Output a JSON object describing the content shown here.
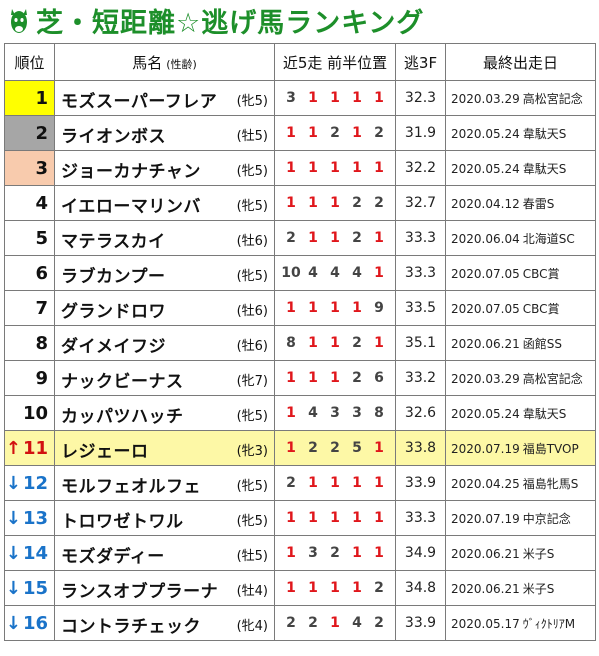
{
  "title": "芝・短距離☆逃げ馬ランキング",
  "colors": {
    "title": "#1d8f2a",
    "first_place": "#ffff00",
    "second_place": "#a6a6a6",
    "third_place": "#f8cbad",
    "highlight_row": "#fdf8a6",
    "leader_position": "#e0161b",
    "rank_up": "#d21010",
    "rank_down": "#1a73c9"
  },
  "headers": {
    "rank": "順位",
    "name": "馬名",
    "name_sub": "(性齢)",
    "recent": "近5走 前半位置",
    "last3f": "逃3F",
    "last_run": "最終出走日"
  },
  "rows": [
    {
      "rank": "1",
      "arrow": "",
      "name": "モズスーパーフレア",
      "age": "(牝5)",
      "positions": [
        "3",
        "1",
        "1",
        "1",
        "1"
      ],
      "last3f": "32.3",
      "date": "2020.03.29",
      "race": "高松宮記念",
      "rank_bg": "#ffff00"
    },
    {
      "rank": "2",
      "arrow": "",
      "name": "ライオンボス",
      "age": "(牡5)",
      "positions": [
        "1",
        "1",
        "2",
        "1",
        "2"
      ],
      "last3f": "31.9",
      "date": "2020.05.24",
      "race": "韋駄天S",
      "rank_bg": "#a6a6a6"
    },
    {
      "rank": "3",
      "arrow": "",
      "name": "ジョーカナチャン",
      "age": "(牝5)",
      "positions": [
        "1",
        "1",
        "1",
        "1",
        "1"
      ],
      "last3f": "32.2",
      "date": "2020.05.24",
      "race": "韋駄天S",
      "rank_bg": "#f8cbad"
    },
    {
      "rank": "4",
      "arrow": "",
      "name": "イエローマリンバ",
      "age": "(牝5)",
      "positions": [
        "1",
        "1",
        "1",
        "2",
        "2"
      ],
      "last3f": "32.7",
      "date": "2020.04.12",
      "race": "春雷S",
      "rank_bg": ""
    },
    {
      "rank": "5",
      "arrow": "",
      "name": "マテラスカイ",
      "age": "(牡6)",
      "positions": [
        "2",
        "1",
        "1",
        "2",
        "1"
      ],
      "last3f": "33.3",
      "date": "2020.06.04",
      "race": "北海道SC",
      "rank_bg": ""
    },
    {
      "rank": "6",
      "arrow": "",
      "name": "ラブカンプー",
      "age": "(牝5)",
      "positions": [
        "10",
        "4",
        "4",
        "4",
        "1"
      ],
      "last3f": "33.3",
      "date": "2020.07.05",
      "race": "CBC賞",
      "rank_bg": ""
    },
    {
      "rank": "7",
      "arrow": "",
      "name": "グランドロワ",
      "age": "(牡6)",
      "positions": [
        "1",
        "1",
        "1",
        "1",
        "9"
      ],
      "last3f": "33.5",
      "date": "2020.07.05",
      "race": "CBC賞",
      "rank_bg": ""
    },
    {
      "rank": "8",
      "arrow": "",
      "name": "ダイメイフジ",
      "age": "(牡6)",
      "positions": [
        "8",
        "1",
        "1",
        "2",
        "1"
      ],
      "last3f": "35.1",
      "date": "2020.06.21",
      "race": "函館SS",
      "rank_bg": ""
    },
    {
      "rank": "9",
      "arrow": "",
      "name": "ナックビーナス",
      "age": "(牝7)",
      "positions": [
        "1",
        "1",
        "1",
        "2",
        "6"
      ],
      "last3f": "33.2",
      "date": "2020.03.29",
      "race": "高松宮記念",
      "rank_bg": ""
    },
    {
      "rank": "10",
      "arrow": "",
      "name": "カッパツハッチ",
      "age": "(牝5)",
      "positions": [
        "1",
        "4",
        "3",
        "3",
        "8"
      ],
      "last3f": "32.6",
      "date": "2020.05.24",
      "race": "韋駄天S",
      "rank_bg": ""
    },
    {
      "rank": "11",
      "arrow": "↑",
      "name": "レジェーロ",
      "age": "(牝3)",
      "positions": [
        "1",
        "2",
        "2",
        "5",
        "1"
      ],
      "last3f": "33.8",
      "date": "2020.07.19",
      "race": "福島TVOP",
      "rank_bg": "",
      "highlight": true
    },
    {
      "rank": "12",
      "arrow": "↓",
      "name": "モルフェオルフェ",
      "age": "(牝5)",
      "positions": [
        "2",
        "1",
        "1",
        "1",
        "1"
      ],
      "last3f": "33.9",
      "date": "2020.04.25",
      "race": "福島牝馬S",
      "rank_bg": ""
    },
    {
      "rank": "13",
      "arrow": "↓",
      "name": "トロワゼトワル",
      "age": "(牝5)",
      "positions": [
        "1",
        "1",
        "1",
        "1",
        "1"
      ],
      "last3f": "33.3",
      "date": "2020.07.19",
      "race": "中京記念",
      "rank_bg": ""
    },
    {
      "rank": "14",
      "arrow": "↓",
      "name": "モズダディー",
      "age": "(牡5)",
      "positions": [
        "1",
        "3",
        "2",
        "1",
        "1"
      ],
      "last3f": "34.9",
      "date": "2020.06.21",
      "race": "米子S",
      "rank_bg": ""
    },
    {
      "rank": "15",
      "arrow": "↓",
      "name": "ランスオブプラーナ",
      "age": "(牡4)",
      "positions": [
        "1",
        "1",
        "1",
        "1",
        "2"
      ],
      "last3f": "34.8",
      "date": "2020.06.21",
      "race": "米子S",
      "rank_bg": ""
    },
    {
      "rank": "16",
      "arrow": "↓",
      "name": "コントラチェック",
      "age": "(牝4)",
      "positions": [
        "2",
        "2",
        "1",
        "4",
        "2"
      ],
      "last3f": "33.9",
      "date": "2020.05.17",
      "race": "ｳﾞｨｸﾄﾘｱM",
      "rank_bg": ""
    }
  ]
}
